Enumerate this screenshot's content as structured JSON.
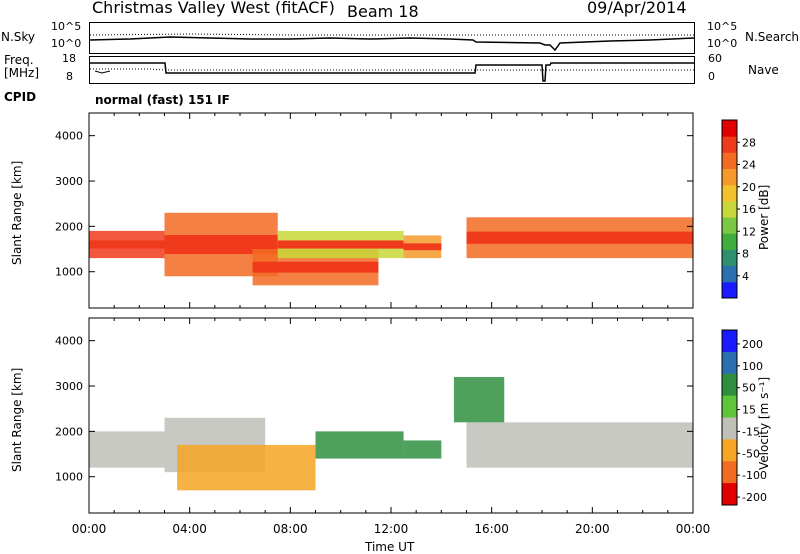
{
  "header": {
    "station": "Christmas Valley West (fitACF)",
    "beam": "Beam 18",
    "date": "09/Apr/2014"
  },
  "strips": {
    "noise": {
      "left_label": "N.Sky",
      "right_label": "N.Search",
      "left_ticks": [
        "10^5",
        "10^0"
      ],
      "right_ticks": [
        "10^5",
        "10^0"
      ]
    },
    "freq": {
      "left_label_1": "Freq.",
      "left_label_2": "[MHz]",
      "right_label": "Nave",
      "left_ticks": [
        "18",
        "8"
      ],
      "right_ticks": [
        "60",
        "0"
      ]
    },
    "cpid": {
      "label": "CPID",
      "value": "normal (fast) 151 IF"
    }
  },
  "x_axis": {
    "label": "Time UT",
    "ticks": [
      "00:00",
      "04:00",
      "08:00",
      "12:00",
      "16:00",
      "20:00",
      "00:00"
    ]
  },
  "chart_data": [
    {
      "type": "heatmap",
      "title": "",
      "xlabel": "Time UT",
      "ylabel": "Slant Range [km]",
      "x_ticks": [
        "00:00",
        "04:00",
        "08:00",
        "12:00",
        "16:00",
        "20:00",
        "00:00"
      ],
      "y_ticks": [
        1000,
        2000,
        3000,
        4000
      ],
      "ylim": [
        200,
        4500
      ],
      "colorbar": {
        "label": "Power [dB]",
        "ticks": [
          4,
          8,
          12,
          16,
          20,
          24,
          28
        ],
        "range": [
          0,
          32
        ],
        "colors": [
          "#1a1aff",
          "#2a6fb0",
          "#2f8f6f",
          "#3fae3f",
          "#7dc843",
          "#c8d83a",
          "#f2c12e",
          "#f59a2a",
          "#f26b22",
          "#ef3b1c",
          "#e00000"
        ]
      },
      "bands": [
        {
          "t": [
            0.0,
            3.0
          ],
          "range": [
            1300,
            1900
          ],
          "peak_db": 28
        },
        {
          "t": [
            3.0,
            7.5
          ],
          "range": [
            900,
            2300
          ],
          "peak_db": 24
        },
        {
          "t": [
            6.5,
            11.5
          ],
          "range": [
            700,
            1500
          ],
          "peak_db": 26
        },
        {
          "t": [
            7.5,
            12.5
          ],
          "range": [
            1300,
            1900
          ],
          "peak_db": 16
        },
        {
          "t": [
            12.5,
            14.0
          ],
          "range": [
            1300,
            1800
          ],
          "peak_db": 22
        },
        {
          "t": [
            15.0,
            24.0
          ],
          "range": [
            1300,
            2200
          ],
          "peak_db": 26
        }
      ]
    },
    {
      "type": "heatmap",
      "title": "",
      "xlabel": "Time UT",
      "ylabel": "Slant Range [km]",
      "x_ticks": [
        "00:00",
        "04:00",
        "08:00",
        "12:00",
        "16:00",
        "20:00",
        "00:00"
      ],
      "y_ticks": [
        1000,
        2000,
        3000,
        4000
      ],
      "ylim": [
        200,
        4500
      ],
      "colorbar": {
        "label": "Velocity [m s⁻¹]",
        "ticks": [
          200,
          100,
          50,
          15,
          -15,
          -50,
          -100,
          -200
        ],
        "colors": [
          "#1a1aff",
          "#2a6fb0",
          "#2f8f3f",
          "#5ec43a",
          "#c0c0b8",
          "#f5a623",
          "#f26b22",
          "#e00000"
        ]
      },
      "bands": [
        {
          "t": [
            0.0,
            3.0
          ],
          "range": [
            1200,
            2000
          ],
          "vel": 0
        },
        {
          "t": [
            3.0,
            7.0
          ],
          "range": [
            1100,
            2300
          ],
          "vel": 0
        },
        {
          "t": [
            3.5,
            9.0
          ],
          "range": [
            700,
            1700
          ],
          "vel": -60
        },
        {
          "t": [
            9.0,
            12.5
          ],
          "range": [
            1400,
            2000
          ],
          "vel": 60
        },
        {
          "t": [
            12.5,
            14.0
          ],
          "range": [
            1400,
            1800
          ],
          "vel": 50
        },
        {
          "t": [
            15.0,
            24.0
          ],
          "range": [
            1200,
            2200
          ],
          "vel": 0
        },
        {
          "t": [
            14.5,
            16.5
          ],
          "range": [
            2200,
            3200
          ],
          "vel": 50
        }
      ]
    }
  ]
}
